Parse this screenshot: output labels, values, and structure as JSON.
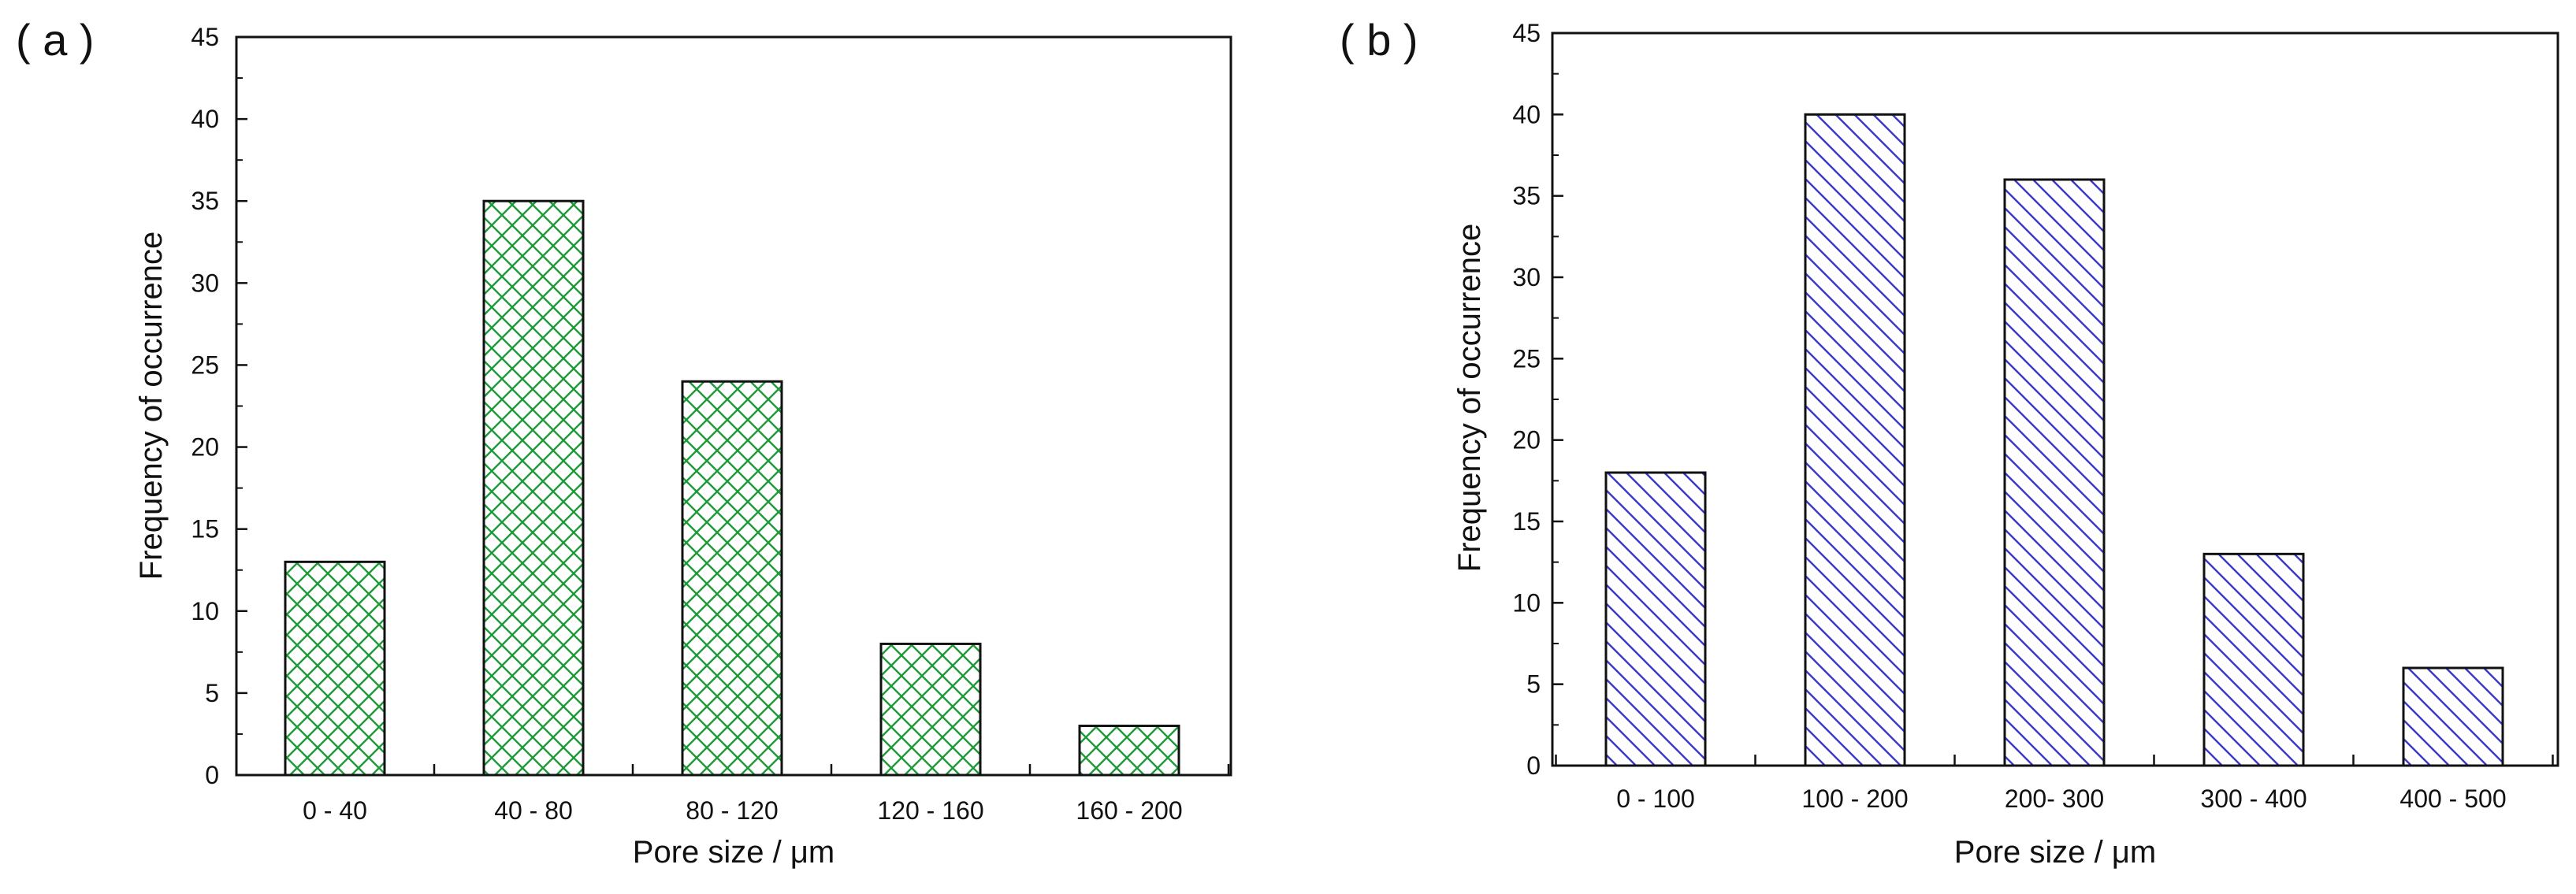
{
  "chart_data": [
    {
      "panel": "( a )",
      "type": "bar",
      "categories": [
        "0 - 40",
        "40 - 80",
        "80 - 120",
        "120 - 160",
        "160 - 200"
      ],
      "values": [
        13,
        35,
        24,
        8,
        3
      ],
      "xlabel": "Pore size / μm",
      "ylabel": "Frequency of occurrence",
      "ylim": [
        0,
        45
      ],
      "yticks": [
        0,
        5,
        10,
        15,
        20,
        25,
        30,
        35,
        40,
        45
      ],
      "fill_pattern": "crosshatch",
      "color": "#1f9a3a",
      "grid": false
    },
    {
      "panel": "( b )",
      "type": "bar",
      "categories": [
        "0 - 100",
        "100 - 200",
        "200- 300",
        "300 - 400",
        "400 - 500"
      ],
      "values": [
        18,
        40,
        36,
        13,
        6
      ],
      "xlabel": "Pore size / μm",
      "ylabel": "Frequency of occurrence",
      "ylim": [
        0,
        45
      ],
      "yticks": [
        0,
        5,
        10,
        15,
        20,
        25,
        30,
        35,
        40,
        45
      ],
      "fill_pattern": "diagonal",
      "color": "#3a3ac8",
      "grid": false
    }
  ]
}
